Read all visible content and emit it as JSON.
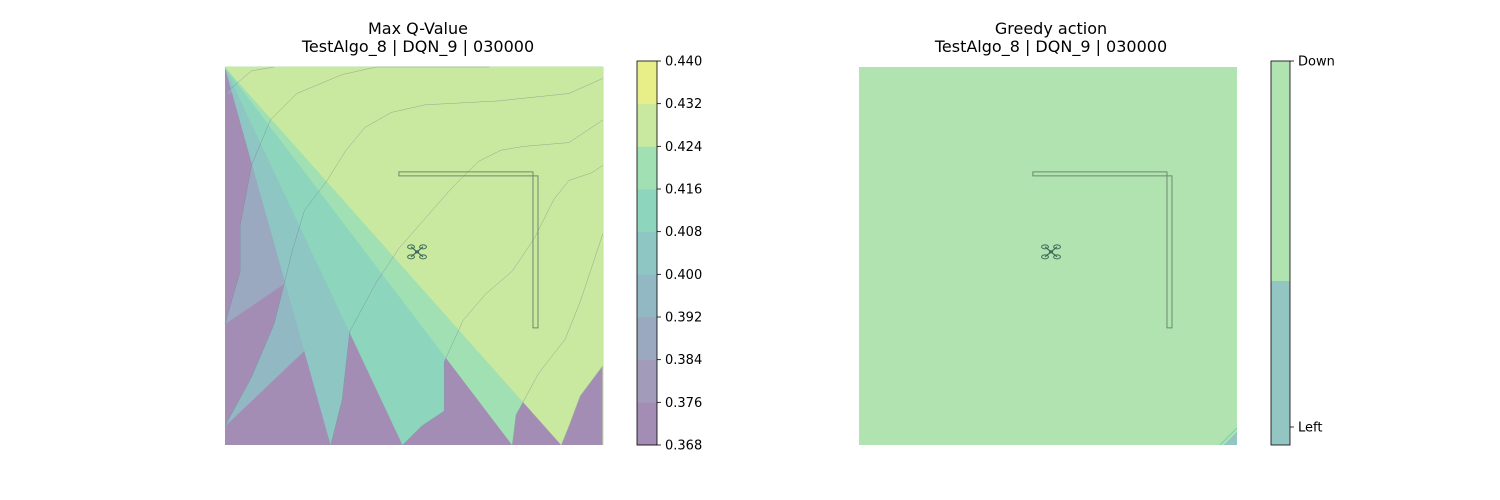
{
  "chart_data": [
    {
      "type": "heatmap",
      "subtype": "filled-contour",
      "title": "Max Q-Value",
      "subtitle": "TestAlgo_8 | DQN_9 | 030000",
      "colorbar": {
        "ticks": [
          "0.368",
          "0.376",
          "0.384",
          "0.392",
          "0.400",
          "0.408",
          "0.416",
          "0.424",
          "0.432",
          "0.440"
        ],
        "levels": [
          0.368,
          0.376,
          0.384,
          0.392,
          0.4,
          0.408,
          0.416,
          0.424,
          0.432,
          0.44
        ],
        "colors": [
          "#a48db5",
          "#a29bba",
          "#9aa9c0",
          "#92b8c3",
          "#8ec6c4",
          "#8ed5bd",
          "#a1e0b3",
          "#c8e99f",
          "#e8ef88"
        ]
      },
      "contour_lines": [
        {
          "level": 0.376,
          "pts": [
            [
              0.0,
              0.93
            ],
            [
              0.07,
              0.99
            ],
            [
              0.13,
              1.0
            ]
          ]
        },
        {
          "level": 0.384,
          "pts": [
            [
              0.0,
              0.32
            ],
            [
              0.04,
              0.46
            ],
            [
              0.04,
              0.58
            ],
            [
              0.07,
              0.74
            ],
            [
              0.12,
              0.86
            ],
            [
              0.19,
              0.93
            ],
            [
              0.31,
              0.98
            ],
            [
              0.4,
              1.0
            ],
            [
              0.7,
              1.0
            ]
          ]
        },
        {
          "level": 0.392,
          "pts": [
            [
              0.0,
              0.05
            ],
            [
              0.07,
              0.18
            ],
            [
              0.13,
              0.32
            ],
            [
              0.18,
              0.52
            ],
            [
              0.21,
              0.62
            ],
            [
              0.27,
              0.7
            ],
            [
              0.32,
              0.78
            ],
            [
              0.37,
              0.84
            ],
            [
              0.44,
              0.88
            ],
            [
              0.53,
              0.9
            ],
            [
              0.72,
              0.91
            ],
            [
              0.91,
              0.93
            ],
            [
              1.0,
              0.97
            ]
          ]
        },
        {
          "level": 0.4,
          "pts": [
            [
              0.28,
              0.0
            ],
            [
              0.31,
              0.12
            ],
            [
              0.33,
              0.3
            ],
            [
              0.4,
              0.43
            ],
            [
              0.46,
              0.52
            ],
            [
              0.53,
              0.6
            ],
            [
              0.6,
              0.68
            ],
            [
              0.67,
              0.75
            ],
            [
              0.73,
              0.78
            ],
            [
              0.79,
              0.79
            ],
            [
              0.91,
              0.8
            ],
            [
              1.0,
              0.86
            ]
          ]
        },
        {
          "level": 0.408,
          "pts": [
            [
              0.47,
              0.0
            ],
            [
              0.52,
              0.05
            ],
            [
              0.58,
              0.09
            ],
            [
              0.58,
              0.22
            ],
            [
              0.63,
              0.33
            ],
            [
              0.69,
              0.4
            ],
            [
              0.76,
              0.46
            ],
            [
              0.82,
              0.55
            ],
            [
              0.87,
              0.65
            ],
            [
              0.91,
              0.7
            ],
            [
              0.97,
              0.72
            ],
            [
              1.0,
              0.74
            ]
          ]
        },
        {
          "level": 0.416,
          "pts": [
            [
              0.76,
              0.0
            ],
            [
              0.77,
              0.08
            ],
            [
              0.83,
              0.19
            ],
            [
              0.9,
              0.28
            ],
            [
              0.94,
              0.38
            ],
            [
              1.0,
              0.56
            ]
          ]
        },
        {
          "level": 0.424,
          "pts": [
            [
              0.89,
              0.0
            ],
            [
              0.91,
              0.05
            ],
            [
              0.94,
              0.13
            ],
            [
              1.0,
              0.21
            ]
          ]
        }
      ]
    },
    {
      "type": "heatmap",
      "subtype": "filled-contour",
      "title": "Greedy action",
      "subtitle": "TestAlgo_8 | DQN_9 | 030000",
      "colorbar": {
        "ticks": [
          "Left",
          "Down"
        ],
        "colors": [
          "#93c6c3",
          "#b0e3b0"
        ]
      },
      "dominant_action": "Down",
      "minor_region": {
        "action": "Left",
        "pts": [
          [
            0.965,
            0.0
          ],
          [
            1.0,
            0.0
          ],
          [
            1.0,
            0.035
          ]
        ]
      }
    }
  ],
  "overlay": {
    "wall_color": "#6e8a6e",
    "drone_icon": "drone-icon"
  }
}
